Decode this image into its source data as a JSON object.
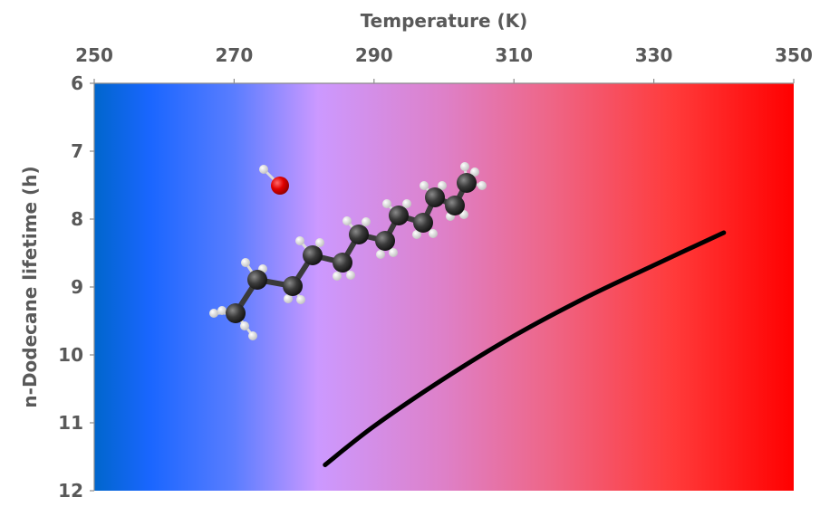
{
  "chart_data": {
    "type": "line",
    "title": "",
    "xlabel": "Temperature (K)",
    "ylabel": "n-Dodecane lifetime (h)",
    "xlim": [
      250,
      350
    ],
    "ylim": [
      6,
      12
    ],
    "y_inverted": true,
    "x_axis_position": "top",
    "x_ticks": [
      "250",
      "270",
      "290",
      "310",
      "330",
      "350"
    ],
    "y_ticks": [
      "6",
      "7",
      "8",
      "9",
      "10",
      "11",
      "12"
    ],
    "grid": false,
    "legend": "none",
    "series": [
      {
        "color": "#000000",
        "x": [
          283,
          290,
          300,
          310,
          320,
          330,
          340
        ],
        "y": [
          11.62,
          11.05,
          10.35,
          9.72,
          9.17,
          8.68,
          8.2
        ]
      }
    ],
    "background_gradient": [
      "#0066cc",
      "#3b7cff",
      "#cc99ff",
      "#ee6688",
      "#ff0000"
    ],
    "illustration": {
      "molecule": "n-dodecane",
      "radical": "OH",
      "carbon_color": "#3a3a3a",
      "hydrogen_color": "#f0f0f0",
      "oxygen_color": "#e00000"
    }
  }
}
